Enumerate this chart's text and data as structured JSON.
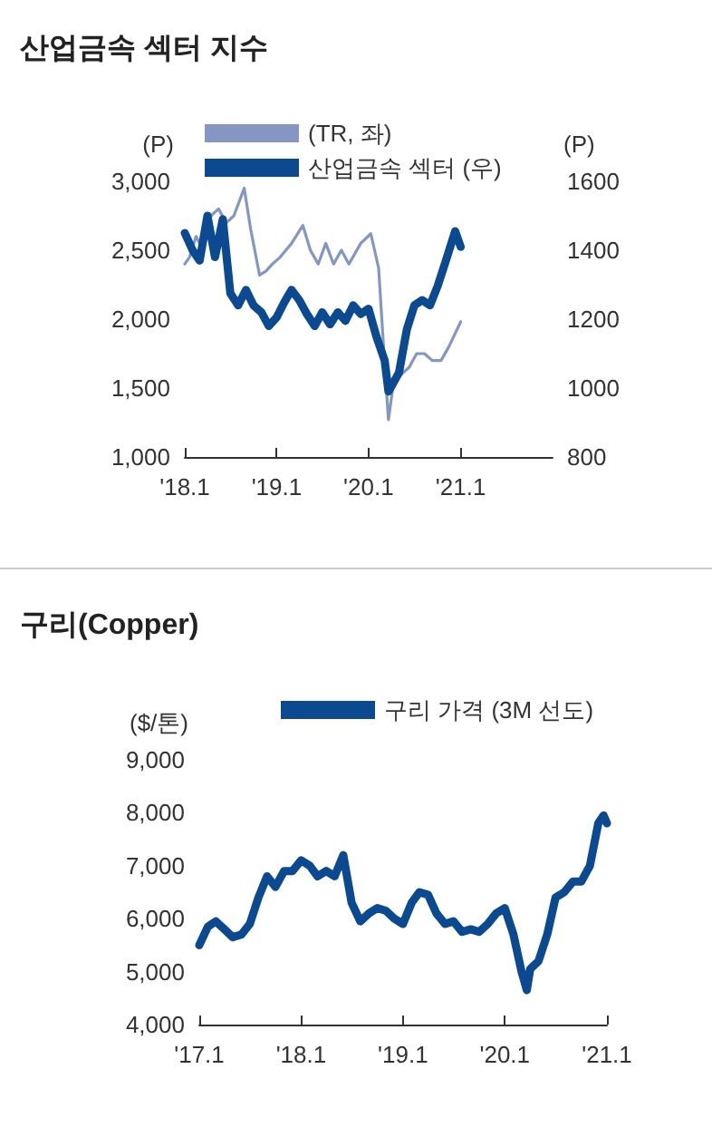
{
  "chart_data": [
    {
      "type": "line",
      "title": "산업금속 섹터 지수",
      "ylabel": "(P)",
      "y2label": "(P)",
      "legend": "top",
      "marker": "none",
      "xlim": [
        "2018-01",
        "2022-01"
      ],
      "xticks": [
        {
          "value": "2018-01",
          "label": "'18.1"
        },
        {
          "value": "2019-01",
          "label": "'19.1"
        },
        {
          "value": "2020-01",
          "label": "'20.1"
        },
        {
          "value": "2021-01",
          "label": "'21.1"
        }
      ],
      "ylim": [
        1000,
        3000
      ],
      "yticks": [
        {
          "value": 1000,
          "label": "1,000"
        },
        {
          "value": 1500,
          "label": "1,500"
        },
        {
          "value": 2000,
          "label": "2,000"
        },
        {
          "value": 2500,
          "label": "2,500"
        },
        {
          "value": 3000,
          "label": "3,000"
        }
      ],
      "y2lim": [
        800,
        1600
      ],
      "y2ticks": [
        800,
        1000,
        1200,
        1400,
        1600
      ],
      "series": [
        {
          "name": "(TR, 좌)",
          "color": "#8496c4",
          "x": [
            "2018-01-01",
            "2018-01-20",
            "2018-02-15",
            "2018-03-15",
            "2018-04-15",
            "2018-05-15",
            "2018-06-15",
            "2018-07-15",
            "2018-08-25",
            "2018-09-20",
            "2018-10-25",
            "2018-11-20",
            "2018-12-15",
            "2019-01-15",
            "2019-03-01",
            "2019-04-15",
            "2019-05-15",
            "2019-06-15",
            "2019-07-15",
            "2019-08-15",
            "2019-09-15",
            "2019-10-15",
            "2019-12-01",
            "2020-01-10",
            "2020-02-10",
            "2020-03-01",
            "2020-03-20",
            "2020-04-10",
            "2020-05-10",
            "2020-06-10",
            "2020-07-10",
            "2020-08-10",
            "2020-09-10",
            "2020-10-15",
            "2020-11-15",
            "2021-01-01"
          ],
          "values": [
            2400,
            2450,
            2600,
            2500,
            2750,
            2800,
            2700,
            2750,
            2950,
            2650,
            2320,
            2350,
            2400,
            2450,
            2550,
            2680,
            2500,
            2400,
            2550,
            2400,
            2500,
            2400,
            2550,
            2620,
            2370,
            1790,
            1270,
            1550,
            1600,
            1650,
            1750,
            1750,
            1700,
            1700,
            1800,
            1980
          ]
        },
        {
          "name": "산업금속 섹터 (우)",
          "color": "#0b4a91",
          "axis": "y2",
          "x": [
            "2018-01-01",
            "2018-02-01",
            "2018-03-01",
            "2018-04-01",
            "2018-05-01",
            "2018-06-01",
            "2018-07-01",
            "2018-08-01",
            "2018-09-01",
            "2018-10-01",
            "2018-11-01",
            "2018-12-01",
            "2019-01-01",
            "2019-02-01",
            "2019-03-01",
            "2019-04-01",
            "2019-05-01",
            "2019-06-01",
            "2019-07-01",
            "2019-08-01",
            "2019-09-01",
            "2019-10-01",
            "2019-11-01",
            "2019-12-01",
            "2020-01-01",
            "2020-02-01",
            "2020-03-05",
            "2020-03-20",
            "2020-04-01",
            "2020-05-01",
            "2020-06-01",
            "2020-07-01",
            "2020-08-01",
            "2020-09-01",
            "2020-10-01",
            "2020-11-01",
            "2020-12-10",
            "2021-01-01"
          ],
          "values": [
            1450,
            1400,
            1370,
            1500,
            1380,
            1490,
            1275,
            1240,
            1285,
            1240,
            1220,
            1180,
            1205,
            1250,
            1285,
            1255,
            1215,
            1180,
            1220,
            1185,
            1220,
            1195,
            1240,
            1215,
            1230,
            1150,
            1080,
            990,
            1005,
            1045,
            1170,
            1240,
            1255,
            1240,
            1295,
            1365,
            1455,
            1410
          ]
        }
      ]
    },
    {
      "type": "line",
      "title": "구리(Copper)",
      "ylabel": "($/톤)",
      "legend": "top",
      "marker": "none",
      "xlim": [
        "2017-01",
        "2021-01"
      ],
      "xticks": [
        {
          "value": "2017-01",
          "label": "'17.1"
        },
        {
          "value": "2018-01",
          "label": "'18.1"
        },
        {
          "value": "2019-01",
          "label": "'19.1"
        },
        {
          "value": "2020-01",
          "label": "'20.1"
        },
        {
          "value": "2021-01",
          "label": "'21.1"
        }
      ],
      "ylim": [
        4000,
        9000
      ],
      "yticks": [
        {
          "value": 4000,
          "label": "4,000"
        },
        {
          "value": 5000,
          "label": "5,000"
        },
        {
          "value": 6000,
          "label": "6,000"
        },
        {
          "value": 7000,
          "label": "7,000"
        },
        {
          "value": 8000,
          "label": "8,000"
        },
        {
          "value": 9000,
          "label": "9,000"
        }
      ],
      "series": [
        {
          "name": "구리 가격 (3M 선도)",
          "color": "#0b4a91",
          "x": [
            "2017-01-01",
            "2017-02-01",
            "2017-03-01",
            "2017-04-01",
            "2017-05-01",
            "2017-06-01",
            "2017-07-01",
            "2017-08-01",
            "2017-09-01",
            "2017-10-01",
            "2017-11-01",
            "2017-12-01",
            "2018-01-01",
            "2018-02-01",
            "2018-03-01",
            "2018-04-01",
            "2018-05-01",
            "2018-06-01",
            "2018-07-01",
            "2018-08-01",
            "2018-09-01",
            "2018-10-01",
            "2018-11-01",
            "2018-12-01",
            "2019-01-01",
            "2019-02-01",
            "2019-03-01",
            "2019-04-01",
            "2019-05-01",
            "2019-06-01",
            "2019-07-01",
            "2019-08-01",
            "2019-09-01",
            "2019-10-01",
            "2019-11-01",
            "2019-12-01",
            "2020-01-01",
            "2020-02-01",
            "2020-03-01",
            "2020-03-20",
            "2020-04-01",
            "2020-05-01",
            "2020-06-01",
            "2020-07-01",
            "2020-08-01",
            "2020-09-01",
            "2020-10-01",
            "2020-11-01",
            "2020-12-01",
            "2020-12-20",
            "2021-01-01"
          ],
          "values": [
            5500,
            5850,
            5950,
            5800,
            5650,
            5700,
            5900,
            6400,
            6800,
            6600,
            6900,
            6900,
            7100,
            7000,
            6800,
            6900,
            6800,
            7200,
            6300,
            5950,
            6100,
            6200,
            6150,
            6000,
            5900,
            6300,
            6500,
            6450,
            6100,
            5900,
            5950,
            5750,
            5800,
            5750,
            5900,
            6100,
            6200,
            5700,
            5000,
            4650,
            5050,
            5200,
            5700,
            6400,
            6500,
            6700,
            6700,
            7000,
            7800,
            7950,
            7800
          ]
        }
      ]
    }
  ]
}
